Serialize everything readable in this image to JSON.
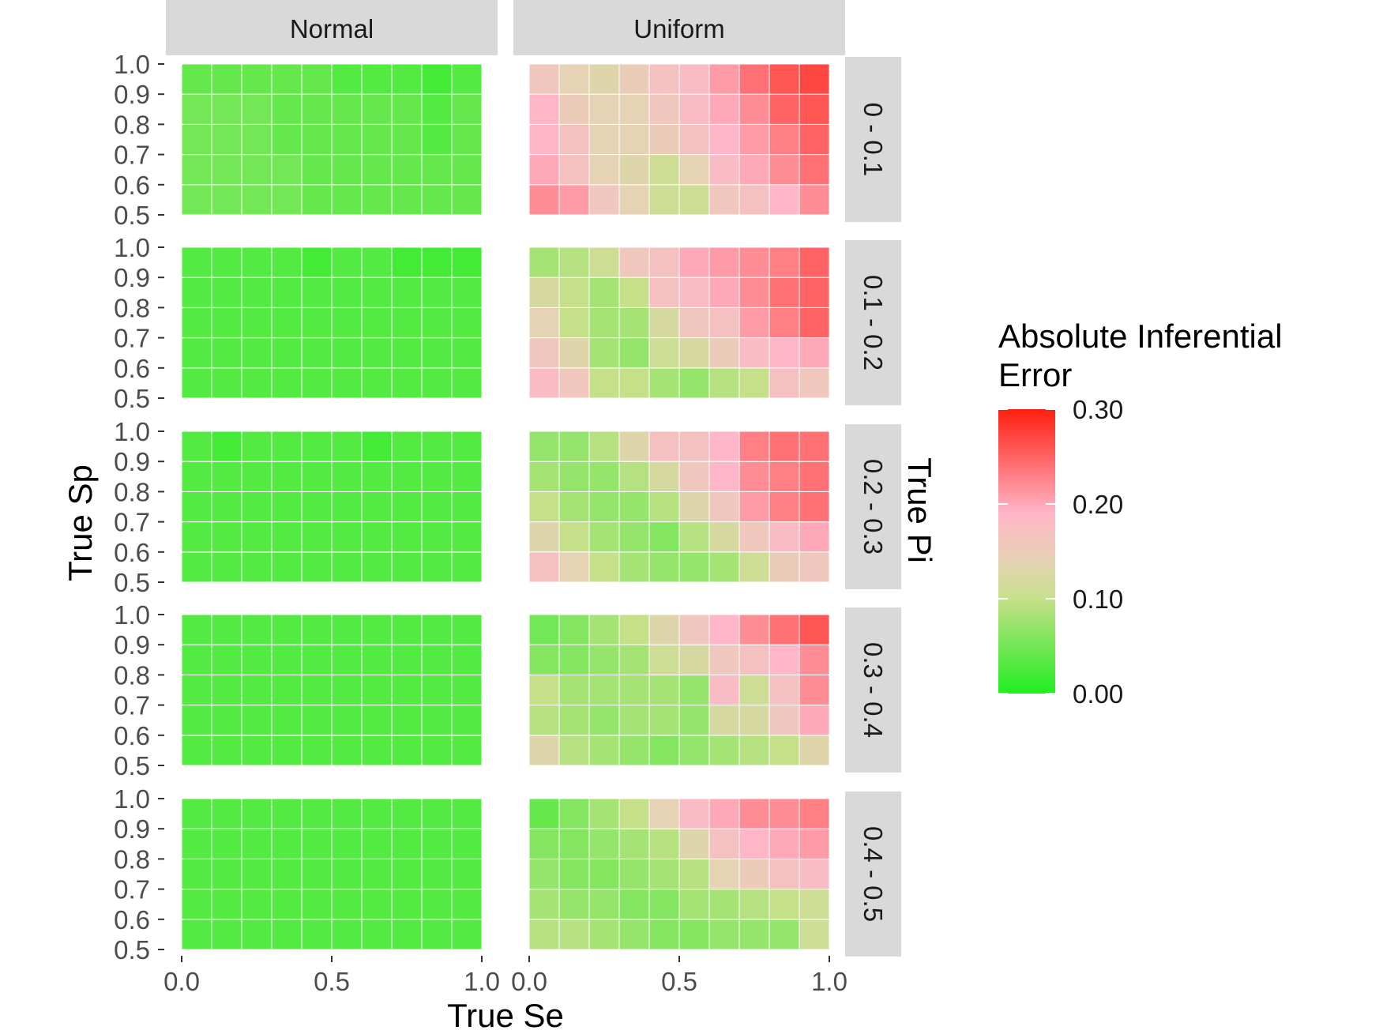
{
  "chart_data": {
    "type": "heatmap",
    "xlabel": "True Se",
    "ylabel": "True Sp",
    "facet_row_title": "True Pi",
    "column_facets": [
      "Normal",
      "Uniform"
    ],
    "row_facets": [
      "0 - 0.1",
      "0.1 - 0.2",
      "0.2 - 0.3",
      "0.3 - 0.4",
      "0.4 - 0.5"
    ],
    "x_ticks": [
      "0.0",
      "0.5",
      "1.0"
    ],
    "y_ticks": [
      "0.5",
      "0.6",
      "0.7",
      "0.8",
      "0.9",
      "1.0"
    ],
    "x_values": [
      0.05,
      0.15,
      0.25,
      0.35,
      0.45,
      0.55,
      0.65,
      0.75,
      0.85,
      0.95
    ],
    "y_values": [
      0.55,
      0.65,
      0.75,
      0.85,
      0.95
    ],
    "xlim": [
      0,
      1
    ],
    "ylim": [
      0.5,
      1.0
    ],
    "legend": {
      "title_lines": [
        "Absolute Inferential",
        "Error"
      ],
      "ticks": [
        "0.00",
        "0.10",
        "0.20",
        "0.30"
      ],
      "range": [
        0,
        0.3
      ],
      "placement": "right"
    },
    "colors": {
      "low": "#22ee22",
      "mid_low": "#c6e08a",
      "mid": "#e6d2b4",
      "mid_high": "#ffb6c8",
      "high": "#ff1e10",
      "strip_background": "#d9d9d9"
    },
    "note": "values[row_facet][y from 0.55 to 0.95][x from 0.05 to 0.95]",
    "values": {
      "Normal": [
        [
          [
            0.05,
            0.05,
            0.05,
            0.05,
            0.04,
            0.04,
            0.04,
            0.04,
            0.04,
            0.04
          ],
          [
            0.05,
            0.05,
            0.05,
            0.05,
            0.04,
            0.04,
            0.04,
            0.04,
            0.04,
            0.04
          ],
          [
            0.05,
            0.05,
            0.05,
            0.04,
            0.04,
            0.04,
            0.04,
            0.04,
            0.03,
            0.04
          ],
          [
            0.05,
            0.05,
            0.05,
            0.04,
            0.04,
            0.04,
            0.04,
            0.04,
            0.03,
            0.04
          ],
          [
            0.04,
            0.04,
            0.04,
            0.04,
            0.04,
            0.03,
            0.03,
            0.03,
            0.02,
            0.03
          ]
        ],
        [
          [
            0.03,
            0.03,
            0.03,
            0.03,
            0.03,
            0.03,
            0.03,
            0.03,
            0.03,
            0.03
          ],
          [
            0.03,
            0.03,
            0.03,
            0.03,
            0.03,
            0.03,
            0.03,
            0.03,
            0.03,
            0.03
          ],
          [
            0.03,
            0.03,
            0.03,
            0.03,
            0.03,
            0.03,
            0.03,
            0.03,
            0.03,
            0.03
          ],
          [
            0.03,
            0.03,
            0.03,
            0.03,
            0.03,
            0.03,
            0.03,
            0.03,
            0.03,
            0.03
          ],
          [
            0.03,
            0.03,
            0.03,
            0.03,
            0.02,
            0.03,
            0.03,
            0.02,
            0.02,
            0.02
          ]
        ],
        [
          [
            0.03,
            0.03,
            0.03,
            0.03,
            0.03,
            0.03,
            0.03,
            0.03,
            0.03,
            0.03
          ],
          [
            0.03,
            0.03,
            0.03,
            0.03,
            0.03,
            0.03,
            0.03,
            0.03,
            0.03,
            0.03
          ],
          [
            0.03,
            0.03,
            0.03,
            0.03,
            0.03,
            0.03,
            0.03,
            0.03,
            0.03,
            0.03
          ],
          [
            0.03,
            0.03,
            0.03,
            0.03,
            0.03,
            0.03,
            0.03,
            0.03,
            0.03,
            0.03
          ],
          [
            0.03,
            0.02,
            0.03,
            0.03,
            0.03,
            0.03,
            0.02,
            0.03,
            0.03,
            0.03
          ]
        ],
        [
          [
            0.03,
            0.03,
            0.03,
            0.03,
            0.03,
            0.03,
            0.03,
            0.03,
            0.03,
            0.03
          ],
          [
            0.03,
            0.03,
            0.03,
            0.03,
            0.03,
            0.03,
            0.03,
            0.03,
            0.03,
            0.03
          ],
          [
            0.03,
            0.03,
            0.03,
            0.03,
            0.03,
            0.03,
            0.03,
            0.03,
            0.03,
            0.03
          ],
          [
            0.03,
            0.03,
            0.03,
            0.03,
            0.03,
            0.03,
            0.03,
            0.03,
            0.03,
            0.03
          ],
          [
            0.03,
            0.03,
            0.03,
            0.03,
            0.03,
            0.03,
            0.03,
            0.03,
            0.03,
            0.03
          ]
        ],
        [
          [
            0.03,
            0.03,
            0.03,
            0.03,
            0.03,
            0.03,
            0.03,
            0.03,
            0.03,
            0.03
          ],
          [
            0.03,
            0.03,
            0.03,
            0.03,
            0.03,
            0.03,
            0.03,
            0.03,
            0.03,
            0.03
          ],
          [
            0.03,
            0.03,
            0.03,
            0.03,
            0.03,
            0.03,
            0.03,
            0.03,
            0.03,
            0.03
          ],
          [
            0.03,
            0.03,
            0.03,
            0.03,
            0.03,
            0.03,
            0.03,
            0.03,
            0.03,
            0.03
          ],
          [
            0.03,
            0.03,
            0.03,
            0.03,
            0.03,
            0.03,
            0.03,
            0.03,
            0.03,
            0.03
          ]
        ]
      ],
      "Uniform": [
        [
          [
            0.22,
            0.21,
            0.16,
            0.14,
            0.11,
            0.11,
            0.16,
            0.17,
            0.19,
            0.22
          ],
          [
            0.2,
            0.17,
            0.14,
            0.13,
            0.11,
            0.14,
            0.18,
            0.2,
            0.22,
            0.24
          ],
          [
            0.19,
            0.17,
            0.14,
            0.14,
            0.15,
            0.17,
            0.19,
            0.21,
            0.23,
            0.25
          ],
          [
            0.19,
            0.15,
            0.14,
            0.14,
            0.16,
            0.18,
            0.2,
            0.22,
            0.25,
            0.26
          ],
          [
            0.16,
            0.14,
            0.13,
            0.15,
            0.17,
            0.18,
            0.21,
            0.24,
            0.26,
            0.27
          ]
        ],
        [
          [
            0.18,
            0.16,
            0.1,
            0.1,
            0.08,
            0.07,
            0.09,
            0.1,
            0.17,
            0.16
          ],
          [
            0.16,
            0.13,
            0.08,
            0.07,
            0.11,
            0.12,
            0.15,
            0.18,
            0.19,
            0.2
          ],
          [
            0.14,
            0.1,
            0.08,
            0.08,
            0.12,
            0.16,
            0.17,
            0.21,
            0.23,
            0.25
          ],
          [
            0.12,
            0.1,
            0.08,
            0.1,
            0.17,
            0.18,
            0.2,
            0.22,
            0.24,
            0.25
          ],
          [
            0.08,
            0.09,
            0.11,
            0.16,
            0.17,
            0.2,
            0.21,
            0.22,
            0.23,
            0.25
          ]
        ],
        [
          [
            0.17,
            0.14,
            0.1,
            0.08,
            0.07,
            0.07,
            0.08,
            0.11,
            0.15,
            0.16
          ],
          [
            0.13,
            0.1,
            0.08,
            0.07,
            0.06,
            0.09,
            0.12,
            0.16,
            0.18,
            0.2
          ],
          [
            0.1,
            0.08,
            0.07,
            0.07,
            0.09,
            0.13,
            0.16,
            0.21,
            0.23,
            0.24
          ],
          [
            0.08,
            0.07,
            0.07,
            0.09,
            0.12,
            0.16,
            0.19,
            0.22,
            0.23,
            0.24
          ],
          [
            0.07,
            0.07,
            0.09,
            0.13,
            0.17,
            0.17,
            0.19,
            0.23,
            0.24,
            0.24
          ]
        ],
        [
          [
            0.13,
            0.09,
            0.08,
            0.07,
            0.06,
            0.07,
            0.08,
            0.09,
            0.1,
            0.13
          ],
          [
            0.09,
            0.08,
            0.07,
            0.08,
            0.08,
            0.07,
            0.12,
            0.12,
            0.16,
            0.2
          ],
          [
            0.1,
            0.08,
            0.08,
            0.08,
            0.08,
            0.07,
            0.18,
            0.11,
            0.17,
            0.22
          ],
          [
            0.06,
            0.06,
            0.07,
            0.08,
            0.11,
            0.12,
            0.16,
            0.17,
            0.19,
            0.22
          ],
          [
            0.05,
            0.06,
            0.08,
            0.1,
            0.13,
            0.16,
            0.19,
            0.22,
            0.24,
            0.26
          ]
        ],
        [
          [
            0.09,
            0.09,
            0.08,
            0.07,
            0.06,
            0.06,
            0.07,
            0.07,
            0.07,
            0.11
          ],
          [
            0.08,
            0.07,
            0.07,
            0.06,
            0.06,
            0.08,
            0.08,
            0.09,
            0.1,
            0.11
          ],
          [
            0.07,
            0.06,
            0.06,
            0.07,
            0.08,
            0.09,
            0.14,
            0.15,
            0.17,
            0.18
          ],
          [
            0.06,
            0.06,
            0.07,
            0.08,
            0.09,
            0.13,
            0.17,
            0.19,
            0.2,
            0.21
          ],
          [
            0.04,
            0.06,
            0.08,
            0.1,
            0.14,
            0.18,
            0.2,
            0.22,
            0.22,
            0.23
          ]
        ]
      ]
    }
  }
}
